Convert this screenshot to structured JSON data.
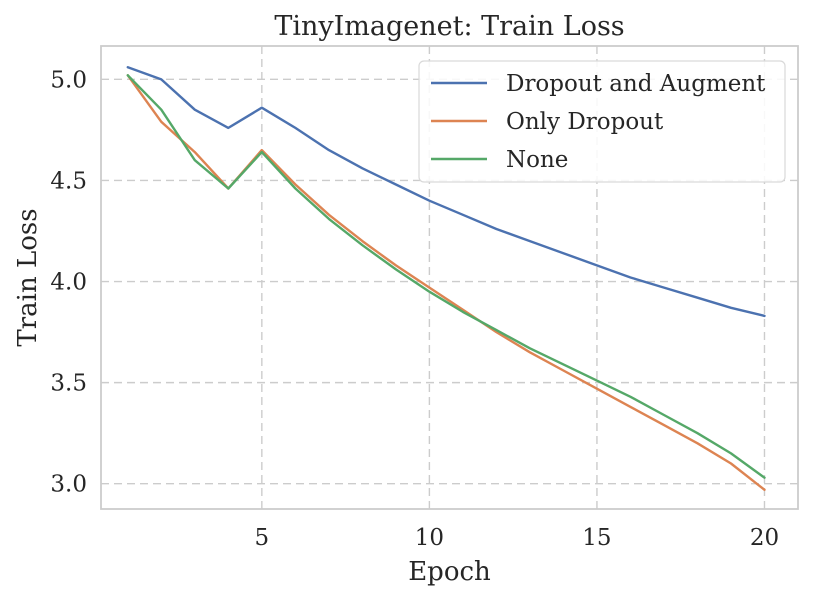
{
  "chart_data": {
    "type": "line",
    "title": "TinyImagenet: Train Loss",
    "xlabel": "Epoch",
    "ylabel": "Train Loss",
    "xlim": [
      0.2,
      21.0
    ],
    "ylim": [
      2.875,
      5.165
    ],
    "x_ticks": [
      5,
      10,
      15,
      20
    ],
    "x_tick_labels": [
      "5",
      "10",
      "15",
      "20"
    ],
    "y_ticks": [
      3.0,
      3.5,
      4.0,
      4.5,
      5.0
    ],
    "y_tick_labels": [
      "3.0",
      "3.5",
      "4.0",
      "4.5",
      "5.0"
    ],
    "grid": true,
    "legend_position": "top-right",
    "x": [
      1,
      2,
      3,
      4,
      5,
      6,
      7,
      8,
      9,
      10,
      11,
      12,
      13,
      14,
      15,
      16,
      17,
      18,
      19,
      20
    ],
    "series": [
      {
        "name": "Dropout and Augment",
        "color": "#4c72b0",
        "values": [
          5.06,
          5.0,
          4.85,
          4.76,
          4.86,
          4.76,
          4.65,
          4.56,
          4.48,
          4.4,
          4.33,
          4.26,
          4.2,
          4.14,
          4.08,
          4.02,
          3.97,
          3.92,
          3.87,
          3.83
        ]
      },
      {
        "name": "Only Dropout",
        "color": "#dd8452",
        "values": [
          5.02,
          4.79,
          4.64,
          4.46,
          4.65,
          4.48,
          4.33,
          4.2,
          4.08,
          3.97,
          3.86,
          3.75,
          3.65,
          3.56,
          3.47,
          3.38,
          3.29,
          3.2,
          3.1,
          2.97
        ]
      },
      {
        "name": "None",
        "color": "#55a868",
        "values": [
          5.02,
          4.85,
          4.6,
          4.46,
          4.64,
          4.46,
          4.31,
          4.18,
          4.06,
          3.95,
          3.85,
          3.76,
          3.67,
          3.59,
          3.51,
          3.43,
          3.34,
          3.25,
          3.15,
          3.03
        ]
      }
    ]
  }
}
